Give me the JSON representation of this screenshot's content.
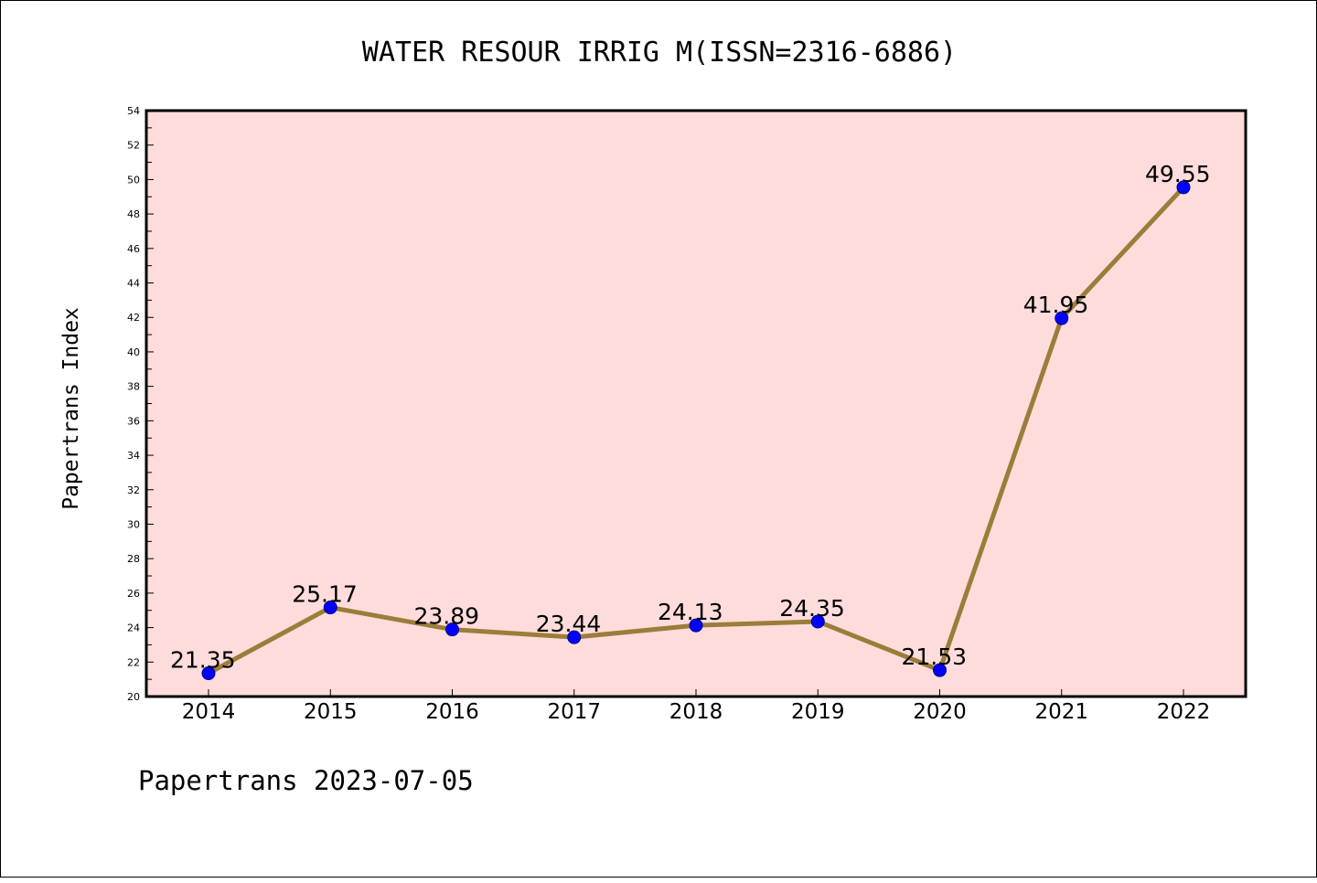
{
  "chart_data": {
    "type": "line",
    "title": "WATER RESOUR IRRIG M(ISSN=2316-6886)",
    "ylabel": "Papertrans Index",
    "xlabel": "",
    "footer": "Papertrans 2023-07-05",
    "categories": [
      "2014",
      "2015",
      "2016",
      "2017",
      "2018",
      "2019",
      "2020",
      "2021",
      "2022"
    ],
    "values": [
      21.35,
      25.17,
      23.89,
      23.44,
      24.13,
      24.35,
      21.53,
      41.95,
      49.55
    ],
    "data_labels": [
      "21.35",
      "25.17",
      "23.89",
      "23.44",
      "24.13",
      "24.35",
      "21.53",
      "41.95",
      "49.55"
    ],
    "ylim": [
      20,
      54
    ],
    "y_ticks": [
      "20",
      "22",
      "24",
      "26",
      "28",
      "30",
      "32",
      "34",
      "36",
      "38",
      "40",
      "42",
      "44",
      "46",
      "48",
      "50",
      "52",
      "54"
    ],
    "grid": false,
    "legend": "none",
    "colors": {
      "plot_background": "#ffdcdc",
      "line": "#9b7d3a",
      "marker": "#0000ff"
    }
  }
}
